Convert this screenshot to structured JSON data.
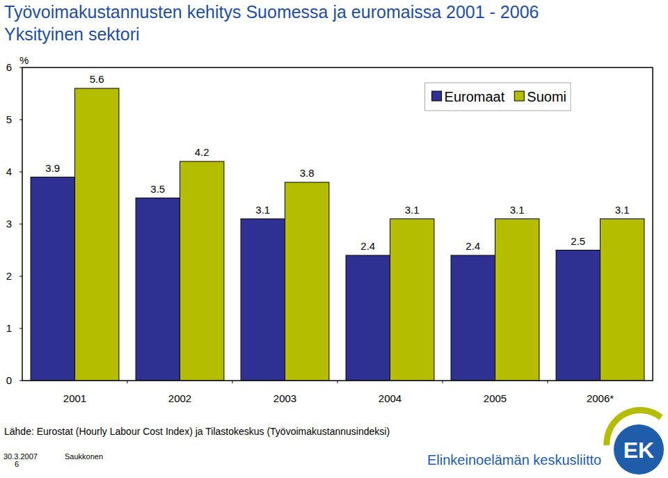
{
  "chart_data": {
    "type": "bar",
    "title": "Työvoimakustannusten kehitys Suomessa ja euromaissa 2001 - 2006",
    "subtitle": "Yksityinen sektori",
    "y_label": "%",
    "categories": [
      "2001",
      "2002",
      "2003",
      "2004",
      "2005",
      "2006*"
    ],
    "series": [
      {
        "name": "Euromaat",
        "color": "#2e3192",
        "values": [
          3.9,
          3.5,
          3.1,
          2.4,
          2.4,
          2.5
        ]
      },
      {
        "name": "Suomi",
        "color": "#b5bd00",
        "values": [
          5.6,
          4.2,
          3.8,
          3.1,
          3.1,
          3.1
        ]
      }
    ],
    "ylim": [
      0,
      6
    ],
    "yticks": [
      0,
      1,
      2,
      3,
      4,
      5,
      6
    ],
    "grid": false,
    "legend": "top-right",
    "data_labels": true,
    "source": "Lähde: Eurostat (Hourly Labour Cost Index) ja Tilastokeskus (Työvoimakustannusindeksi)"
  },
  "footer": {
    "date": "30.3.2007",
    "page": "6",
    "author": "Saukkonen",
    "organization": "Elinkeinoelämän keskusliitto",
    "logo": "EK"
  }
}
